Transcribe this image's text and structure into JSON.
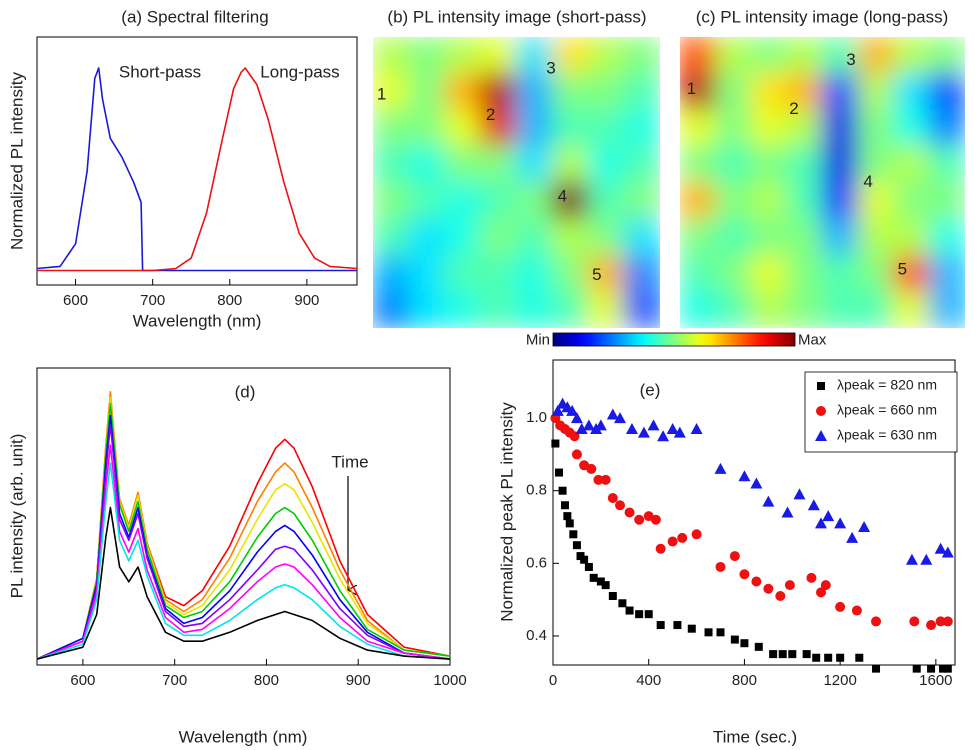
{
  "chart_data": [
    {
      "type": "line",
      "title": "(a) Spectral filtering",
      "xlabel": "Wavelength (nm)",
      "ylabel": "Normalized PL intensity",
      "xlim": [
        550,
        965
      ],
      "ylim": [
        -0.05,
        1.15
      ],
      "xticks": [
        600,
        700,
        800,
        900
      ],
      "annotations": [
        {
          "text": "Short-pass",
          "color": "#1a1adb"
        },
        {
          "text": "Long-pass",
          "color": "#ee1111"
        }
      ],
      "series": [
        {
          "color": "#1a1adb",
          "x": [
            550,
            580,
            600,
            615,
            625,
            630,
            635,
            645,
            660,
            675,
            685,
            687,
            700,
            965
          ],
          "values": [
            0.03,
            0.04,
            0.15,
            0.5,
            0.95,
            1.0,
            0.85,
            0.66,
            0.57,
            0.45,
            0.35,
            0.02,
            0.02,
            0.02
          ]
        },
        {
          "color": "#ee1111",
          "x": [
            550,
            700,
            730,
            750,
            770,
            790,
            805,
            815,
            820,
            835,
            850,
            870,
            890,
            910,
            930,
            965
          ],
          "values": [
            0.02,
            0.02,
            0.03,
            0.08,
            0.3,
            0.65,
            0.9,
            0.98,
            1.0,
            0.92,
            0.75,
            0.45,
            0.2,
            0.08,
            0.04,
            0.03
          ]
        }
      ]
    },
    {
      "type": "heatmap",
      "title": "(b) PL intensity image (short-pass)",
      "zlim": [
        0,
        1
      ],
      "labels": [
        "1",
        "2",
        "3",
        "4",
        "5"
      ],
      "colorbar": {
        "labels": [
          "Min",
          "Max"
        ]
      },
      "values": [
        [
          0.55,
          0.5,
          0.55,
          0.6,
          0.35,
          0.65,
          0.55,
          0.5
        ],
        [
          0.6,
          0.5,
          0.7,
          0.95,
          0.3,
          0.5,
          0.5,
          0.45
        ],
        [
          0.5,
          0.5,
          0.6,
          0.9,
          0.3,
          0.45,
          0.45,
          0.4
        ],
        [
          0.45,
          0.4,
          0.5,
          0.5,
          0.35,
          0.55,
          0.4,
          0.45
        ],
        [
          0.5,
          0.45,
          0.4,
          0.45,
          0.5,
          1.0,
          0.45,
          0.5
        ],
        [
          0.45,
          0.35,
          0.4,
          0.5,
          0.45,
          0.55,
          0.5,
          0.35
        ],
        [
          0.3,
          0.35,
          0.45,
          0.45,
          0.4,
          0.5,
          0.7,
          0.25
        ],
        [
          0.25,
          0.35,
          0.4,
          0.45,
          0.4,
          0.45,
          0.6,
          0.2
        ]
      ]
    },
    {
      "type": "heatmap",
      "title": "(c) PL intensity image (long-pass)",
      "zlim": [
        0,
        1
      ],
      "labels": [
        "1",
        "2",
        "3",
        "4",
        "5"
      ],
      "values": [
        [
          0.8,
          0.55,
          0.5,
          0.55,
          0.45,
          0.7,
          0.55,
          0.5
        ],
        [
          0.95,
          0.5,
          0.65,
          0.7,
          0.2,
          0.55,
          0.35,
          0.2
        ],
        [
          0.6,
          0.5,
          0.6,
          0.55,
          0.1,
          0.5,
          0.4,
          0.25
        ],
        [
          0.5,
          0.45,
          0.5,
          0.45,
          0.1,
          0.5,
          0.55,
          0.45
        ],
        [
          0.7,
          0.5,
          0.55,
          0.45,
          0.15,
          0.6,
          0.5,
          0.5
        ],
        [
          0.5,
          0.45,
          0.5,
          0.5,
          0.3,
          0.55,
          0.55,
          0.4
        ],
        [
          0.45,
          0.5,
          0.6,
          0.5,
          0.45,
          0.5,
          0.8,
          0.3
        ],
        [
          0.4,
          0.45,
          0.55,
          0.5,
          0.45,
          0.45,
          0.6,
          0.3
        ]
      ]
    },
    {
      "type": "line",
      "title": "(d)",
      "xlabel": "Wavelength (nm)",
      "ylabel": "PL intensity (arb. unit)",
      "xlim": [
        550,
        1000
      ],
      "ylim": [
        0,
        1
      ],
      "xticks": [
        600,
        700,
        800,
        900,
        1000
      ],
      "annotations": [
        {
          "text": "Time"
        }
      ],
      "x": [
        550,
        600,
        615,
        625,
        630,
        640,
        650,
        660,
        670,
        690,
        710,
        730,
        760,
        790,
        810,
        820,
        830,
        850,
        880,
        910,
        950,
        1000
      ],
      "series": [
        {
          "color": "#ff0000",
          "values": [
            0.02,
            0.09,
            0.29,
            0.73,
            0.91,
            0.55,
            0.47,
            0.58,
            0.41,
            0.23,
            0.2,
            0.25,
            0.4,
            0.61,
            0.73,
            0.76,
            0.73,
            0.6,
            0.35,
            0.17,
            0.06,
            0.03
          ]
        },
        {
          "color": "#ff8000",
          "values": [
            0.02,
            0.09,
            0.29,
            0.74,
            0.92,
            0.56,
            0.47,
            0.58,
            0.41,
            0.22,
            0.18,
            0.22,
            0.36,
            0.55,
            0.65,
            0.68,
            0.65,
            0.53,
            0.32,
            0.15,
            0.05,
            0.03
          ]
        },
        {
          "color": "#e6e600",
          "values": [
            0.02,
            0.09,
            0.28,
            0.72,
            0.9,
            0.55,
            0.46,
            0.57,
            0.4,
            0.21,
            0.17,
            0.2,
            0.32,
            0.49,
            0.59,
            0.61,
            0.59,
            0.48,
            0.29,
            0.14,
            0.05,
            0.03
          ]
        },
        {
          "color": "#00cc00",
          "values": [
            0.02,
            0.09,
            0.28,
            0.71,
            0.88,
            0.54,
            0.45,
            0.55,
            0.39,
            0.2,
            0.16,
            0.18,
            0.28,
            0.43,
            0.51,
            0.53,
            0.51,
            0.42,
            0.25,
            0.12,
            0.05,
            0.03
          ]
        },
        {
          "color": "#0000ff",
          "values": [
            0.02,
            0.09,
            0.27,
            0.68,
            0.84,
            0.51,
            0.43,
            0.53,
            0.37,
            0.19,
            0.14,
            0.16,
            0.25,
            0.38,
            0.45,
            0.47,
            0.45,
            0.37,
            0.22,
            0.11,
            0.04,
            0.02
          ]
        },
        {
          "color": "#8000ff",
          "values": [
            0.02,
            0.08,
            0.26,
            0.65,
            0.81,
            0.49,
            0.42,
            0.51,
            0.36,
            0.18,
            0.13,
            0.14,
            0.22,
            0.32,
            0.39,
            0.4,
            0.39,
            0.32,
            0.19,
            0.1,
            0.04,
            0.02
          ]
        },
        {
          "color": "#ff00ff",
          "values": [
            0.02,
            0.08,
            0.24,
            0.6,
            0.74,
            0.45,
            0.38,
            0.46,
            0.32,
            0.16,
            0.11,
            0.12,
            0.19,
            0.28,
            0.33,
            0.34,
            0.33,
            0.27,
            0.16,
            0.08,
            0.04,
            0.02
          ]
        },
        {
          "color": "#00e6e6",
          "values": [
            0.02,
            0.07,
            0.22,
            0.55,
            0.68,
            0.42,
            0.35,
            0.42,
            0.3,
            0.14,
            0.1,
            0.1,
            0.15,
            0.22,
            0.26,
            0.27,
            0.26,
            0.22,
            0.13,
            0.07,
            0.03,
            0.02
          ]
        },
        {
          "color": "#000000",
          "values": [
            0.02,
            0.06,
            0.17,
            0.43,
            0.53,
            0.33,
            0.28,
            0.33,
            0.23,
            0.11,
            0.08,
            0.08,
            0.11,
            0.15,
            0.17,
            0.18,
            0.17,
            0.15,
            0.09,
            0.05,
            0.03,
            0.02
          ]
        }
      ]
    },
    {
      "type": "scatter",
      "title": "(e)",
      "xlabel": "Time (sec.)",
      "ylabel": "Normalized peak PL intensity",
      "xlim": [
        0,
        1680
      ],
      "ylim": [
        0.32,
        1.16
      ],
      "xticks": [
        0,
        400,
        800,
        1200,
        1600
      ],
      "yticks": [
        0.4,
        0.6,
        0.8,
        {
          "value": 1,
          "label": "1.0"
        }
      ],
      "legend": "upper right",
      "series": [
        {
          "name": "λpeak = 820 nm",
          "color": "#000000",
          "marker": "square",
          "x": [
            10,
            25,
            40,
            50,
            60,
            70,
            85,
            100,
            115,
            130,
            150,
            170,
            200,
            220,
            250,
            290,
            320,
            360,
            400,
            450,
            520,
            580,
            650,
            700,
            760,
            800,
            860,
            920,
            960,
            1000,
            1060,
            1100,
            1150,
            1200,
            1280,
            1350,
            1520,
            1580,
            1630,
            1650
          ],
          "values": [
            0.93,
            0.85,
            0.8,
            0.76,
            0.73,
            0.71,
            0.68,
            0.65,
            0.62,
            0.61,
            0.59,
            0.56,
            0.55,
            0.54,
            0.51,
            0.49,
            0.47,
            0.46,
            0.46,
            0.43,
            0.43,
            0.42,
            0.41,
            0.41,
            0.39,
            0.38,
            0.37,
            0.35,
            0.35,
            0.35,
            0.35,
            0.34,
            0.34,
            0.34,
            0.34,
            0.31,
            0.31,
            0.31,
            0.31,
            0.31
          ]
        },
        {
          "name": "λpeak = 660 nm",
          "color": "#ee1111",
          "marker": "circle",
          "x": [
            10,
            30,
            50,
            70,
            90,
            100,
            130,
            160,
            190,
            220,
            250,
            280,
            320,
            360,
            400,
            430,
            450,
            500,
            540,
            600,
            700,
            760,
            800,
            850,
            900,
            950,
            990,
            1080,
            1120,
            1140,
            1200,
            1270,
            1350,
            1510,
            1580,
            1620,
            1650
          ],
          "values": [
            1.0,
            0.98,
            0.97,
            0.96,
            0.95,
            0.9,
            0.87,
            0.86,
            0.83,
            0.83,
            0.78,
            0.76,
            0.74,
            0.72,
            0.73,
            0.72,
            0.64,
            0.66,
            0.67,
            0.68,
            0.59,
            0.62,
            0.57,
            0.55,
            0.53,
            0.51,
            0.54,
            0.56,
            0.52,
            0.54,
            0.48,
            0.47,
            0.44,
            0.44,
            0.43,
            0.44,
            0.44
          ]
        },
        {
          "name": "λpeak = 630 nm",
          "color": "#1a1ae6",
          "marker": "triangle",
          "x": [
            20,
            40,
            60,
            80,
            100,
            120,
            150,
            180,
            200,
            250,
            280,
            330,
            380,
            420,
            460,
            500,
            530,
            600,
            700,
            800,
            850,
            900,
            980,
            1030,
            1090,
            1120,
            1150,
            1200,
            1250,
            1300,
            1500,
            1560,
            1620,
            1650
          ],
          "values": [
            1.02,
            1.04,
            1.03,
            1.02,
            1.0,
            0.97,
            0.98,
            0.97,
            0.98,
            1.01,
            1.0,
            0.97,
            0.96,
            0.98,
            0.95,
            0.97,
            0.96,
            0.97,
            0.86,
            0.84,
            0.82,
            0.77,
            0.74,
            0.79,
            0.76,
            0.71,
            0.73,
            0.71,
            0.67,
            0.7,
            0.61,
            0.61,
            0.64,
            0.63
          ]
        }
      ]
    }
  ]
}
